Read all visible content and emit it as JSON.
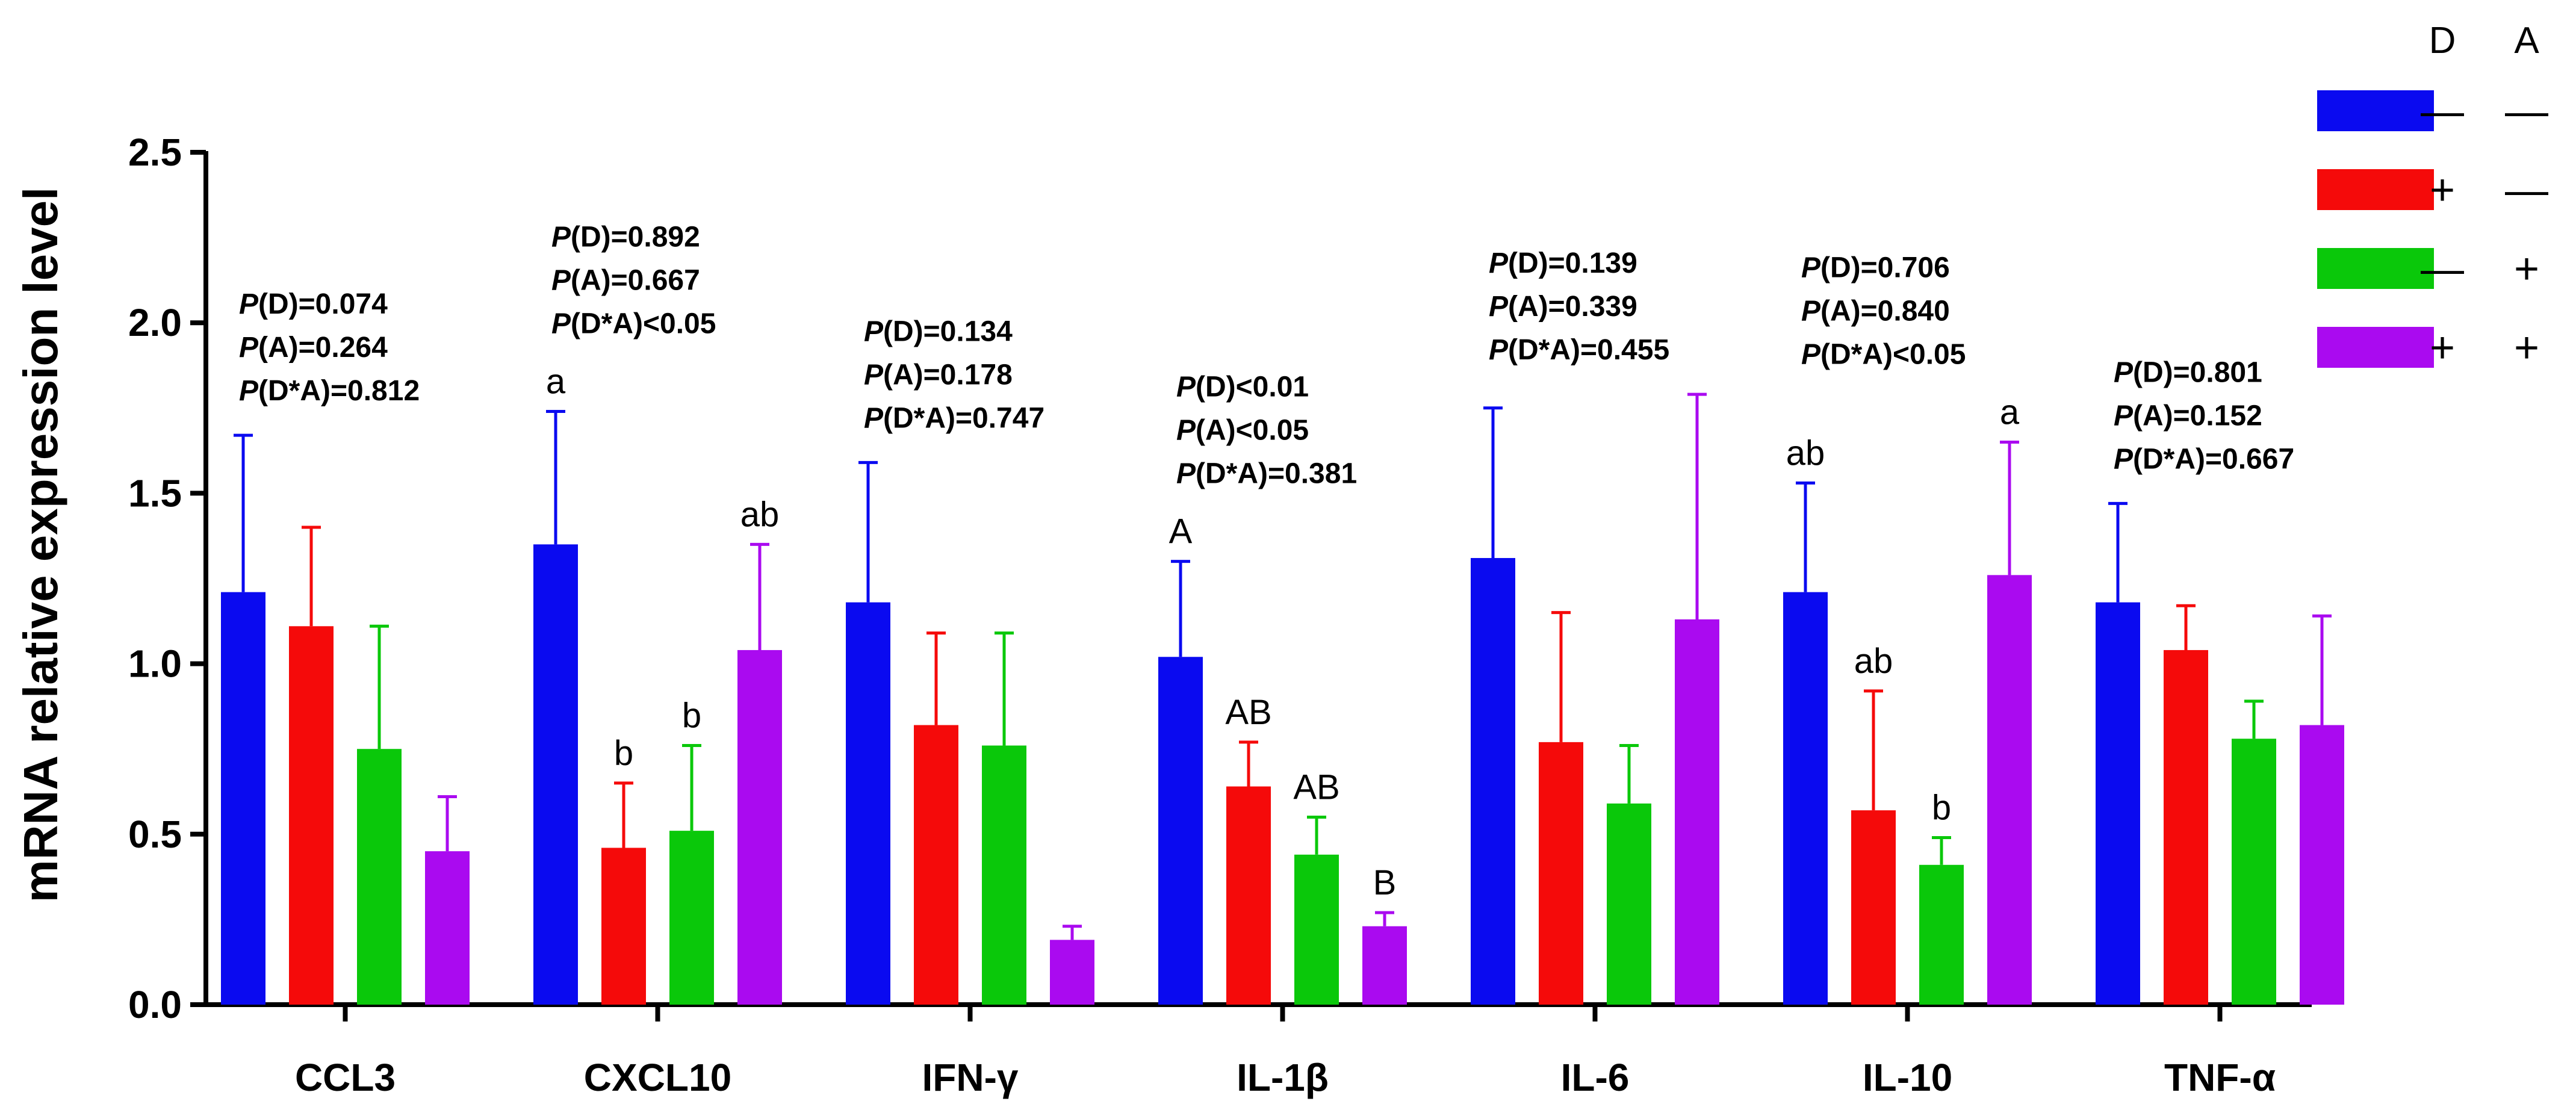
{
  "chart_data": {
    "type": "bar",
    "title": "",
    "xlabel": "",
    "ylabel": "mRNA relative expression level",
    "ylim": [
      0,
      2.5
    ],
    "yticks": [
      "0.0",
      "0.5",
      "1.0",
      "1.5",
      "2.0",
      "2.5"
    ],
    "categories": [
      "CCL3",
      "CXCL10",
      "IFN-γ",
      "IL-1β",
      "IL-6",
      "IL-10",
      "TNF-α"
    ],
    "series": [
      {
        "name": "D− A−",
        "color": "#0a0af0",
        "values": [
          1.21,
          1.35,
          1.18,
          1.02,
          1.31,
          1.21,
          1.18
        ],
        "errors": [
          0.46,
          0.39,
          0.41,
          0.28,
          0.44,
          0.32,
          0.29
        ]
      },
      {
        "name": "D+ A−",
        "color": "#f50a0a",
        "values": [
          1.11,
          0.46,
          0.82,
          0.64,
          0.77,
          0.57,
          1.04
        ],
        "errors": [
          0.29,
          0.19,
          0.27,
          0.13,
          0.38,
          0.35,
          0.13
        ]
      },
      {
        "name": "D− A+",
        "color": "#0ac80a",
        "values": [
          0.75,
          0.51,
          0.76,
          0.44,
          0.59,
          0.41,
          0.78
        ],
        "errors": [
          0.36,
          0.25,
          0.33,
          0.11,
          0.17,
          0.08,
          0.11
        ]
      },
      {
        "name": "D+ A+",
        "color": "#aa0af0",
        "values": [
          0.45,
          1.04,
          0.19,
          0.23,
          1.13,
          1.26,
          0.82
        ],
        "errors": [
          0.16,
          0.31,
          0.04,
          0.04,
          0.66,
          0.39,
          0.32
        ]
      }
    ],
    "significance_letters": [
      [
        "",
        "",
        "",
        ""
      ],
      [
        "a",
        "b",
        "b",
        "ab"
      ],
      [
        "",
        "",
        "",
        ""
      ],
      [
        "A",
        "AB",
        "AB",
        "B"
      ],
      [
        "",
        "",
        "",
        ""
      ],
      [
        "ab",
        "ab",
        "b",
        "a"
      ],
      [
        "",
        "",
        "",
        ""
      ]
    ],
    "p_values": [
      {
        "d": "=0.074",
        "a": "=0.264",
        "da": "=0.812"
      },
      {
        "d": "=0.892",
        "a": "=0.667",
        "da": "<0.05"
      },
      {
        "d": "=0.134",
        "a": "=0.178",
        "da": "=0.747"
      },
      {
        "d": "<0.01",
        "a": "<0.05",
        "da": "=0.381"
      },
      {
        "d": "=0.139",
        "a": "=0.339",
        "da": "=0.455"
      },
      {
        "d": "=0.706",
        "a": "=0.840",
        "da": "<0.05"
      },
      {
        "d": "=0.801",
        "a": "=0.152",
        "da": "=0.667"
      }
    ],
    "p_labels": {
      "d": "(D)",
      "a": "(A)",
      "da": "(D*A)",
      "p": "P"
    },
    "legend": {
      "header_d": "D",
      "header_a": "A",
      "position": "top-right",
      "rows": [
        {
          "color": "#0a0af0",
          "d": "—",
          "a": "—"
        },
        {
          "color": "#f50a0a",
          "d": "+",
          "a": "—"
        },
        {
          "color": "#0ac80a",
          "d": "—",
          "a": "+"
        },
        {
          "color": "#aa0af0",
          "d": "+",
          "a": "+"
        }
      ]
    }
  }
}
